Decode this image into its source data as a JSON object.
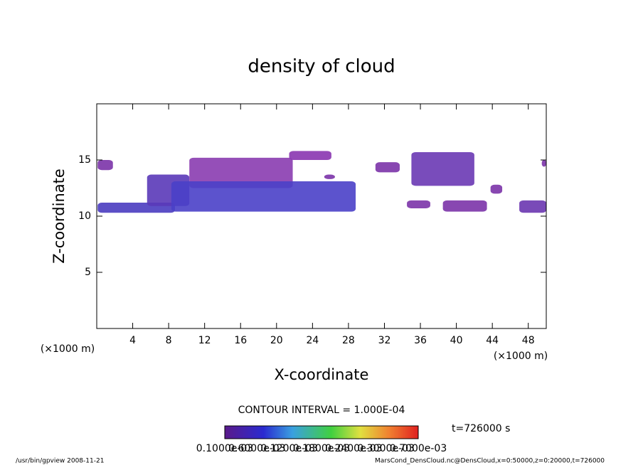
{
  "chart_data": {
    "type": "contour",
    "title": "density of cloud",
    "xlabel": "X-coordinate",
    "ylabel": "Z-coordinate",
    "x_unit": "(×1000 m)",
    "y_unit": "(×1000 m)",
    "xlim": [
      0,
      50
    ],
    "ylim": [
      0,
      20
    ],
    "xticks": [
      4,
      8,
      12,
      16,
      20,
      24,
      28,
      32,
      36,
      40,
      44,
      48
    ],
    "yticks": [
      5,
      10,
      15
    ],
    "patches": [
      {
        "x": [
          0.1,
          1.8
        ],
        "z": [
          14.1,
          15.0
        ],
        "color": "#7b33a8"
      },
      {
        "x": [
          0.1,
          8.7
        ],
        "z": [
          10.3,
          11.2
        ],
        "color": "#4a3cc0"
      },
      {
        "x": [
          5.6,
          10.3
        ],
        "z": [
          10.9,
          13.7
        ],
        "color": "#5a38b8"
      },
      {
        "x": [
          10.3,
          21.8
        ],
        "z": [
          12.5,
          15.2
        ],
        "color": "#8a3cb0"
      },
      {
        "x": [
          8.3,
          28.8
        ],
        "z": [
          10.4,
          13.1
        ],
        "color": "#4a40c8"
      },
      {
        "x": [
          21.4,
          26.1
        ],
        "z": [
          15.0,
          15.8
        ],
        "color": "#8a35b0"
      },
      {
        "x": [
          25.3,
          26.5
        ],
        "z": [
          13.3,
          13.7
        ],
        "color": "#7b33a8"
      },
      {
        "x": [
          31.0,
          33.7
        ],
        "z": [
          13.9,
          14.8
        ],
        "color": "#7b33a8"
      },
      {
        "x": [
          35.0,
          42.0
        ],
        "z": [
          12.7,
          15.7
        ],
        "color": "#6a38b4"
      },
      {
        "x": [
          43.8,
          45.1
        ],
        "z": [
          12.0,
          12.8
        ],
        "color": "#7b33a8"
      },
      {
        "x": [
          34.5,
          37.1
        ],
        "z": [
          10.7,
          11.4
        ],
        "color": "#7b33a8"
      },
      {
        "x": [
          38.5,
          43.4
        ],
        "z": [
          10.4,
          11.4
        ],
        "color": "#7b33a8"
      },
      {
        "x": [
          47.0,
          50.0
        ],
        "z": [
          10.3,
          11.4
        ],
        "color": "#6a36b0"
      },
      {
        "x": [
          49.5,
          50.0
        ],
        "z": [
          14.4,
          15.0
        ],
        "color": "#7b33a8"
      }
    ],
    "contour_interval": "CONTOUR INTERVAL = 1.000E-04",
    "time_label": "t=726000 s",
    "colorbar_labels": [
      "0.1000e-03",
      "0.6000e-03",
      "0.1200e-03",
      "0.1800e-03",
      "0.2400e-03",
      "0.3000e-03",
      "0.7000e-03"
    ],
    "footer_left": "/usr/bin/gpview  2008-11-21",
    "footer_right": "MarsCond_DensCloud.nc@DensCloud,x=0:50000,z=0:20000,t=726000"
  }
}
